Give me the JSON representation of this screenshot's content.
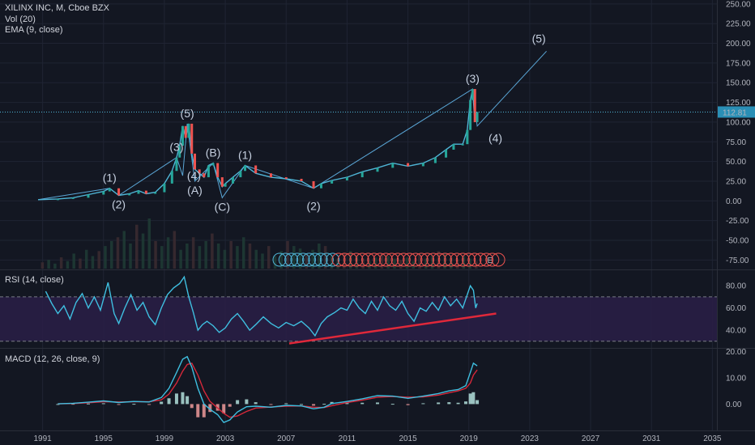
{
  "header": {
    "symbol": "XILINX INC, M, Cboe BZX",
    "vol": "Vol (20)",
    "ema": "EMA (9, close)",
    "rsi": "RSI (14, close)",
    "macd": "MACD (12, 26, close, 9)"
  },
  "colors": {
    "background": "#131722",
    "grid": "#1f2433",
    "price_line": "#4fb5d6",
    "candle_up": "#26a69a",
    "candle_down": "#ef5350",
    "wave_line": "#5aa6d6",
    "wave_label": "#c6d0e0",
    "rsi_line": "#3fbfe0",
    "rsi_band": "#2a1f47",
    "trend_line": "#e0283a",
    "macd_line": "#3fbfe0",
    "signal_line": "#d6283a",
    "last_price_bg": "#2a8fb6"
  },
  "chart_data": [
    {
      "type": "line",
      "title": "XILINX INC, M, Cboe BZX",
      "last_price_label": "112.81",
      "last_price": 112.81,
      "y_ticks": [
        "250.00",
        "225.00",
        "200.00",
        "175.00",
        "150.00",
        "125.00",
        "100.00",
        "75.00",
        "50.00",
        "25.00",
        "0.00",
        "-25.00",
        "-50.00",
        "-75.00"
      ],
      "ylim": [
        -87,
        255
      ],
      "x_ticks": [
        "1991",
        "1995",
        "1999",
        "2003",
        "2007",
        "2011",
        "2015",
        "2019",
        "2023",
        "2027",
        "2031",
        "2035"
      ],
      "xlim": [
        1988.2,
        2035.3
      ],
      "series": [
        {
          "values": [
            [
              1990.7,
              1.5
            ],
            [
              1992.0,
              2.5
            ],
            [
              1993.0,
              4
            ],
            [
              1994.0,
              8
            ],
            [
              1995.0,
              12
            ],
            [
              1995.4,
              16
            ],
            [
              1996.0,
              7
            ],
            [
              1996.7,
              9
            ],
            [
              1997.3,
              13
            ],
            [
              1997.8,
              9
            ],
            [
              1998.4,
              11
            ],
            [
              1999.0,
              22
            ],
            [
              1999.5,
              38
            ],
            [
              1999.8,
              55
            ],
            [
              2000.0,
              70
            ],
            [
              2000.2,
              95
            ],
            [
              2000.4,
              80
            ],
            [
              2000.6,
              98
            ],
            [
              2000.8,
              60
            ],
            [
              2001.0,
              40
            ],
            [
              2001.3,
              35
            ],
            [
              2001.6,
              30
            ],
            [
              2001.9,
              45
            ],
            [
              2002.2,
              48
            ],
            [
              2002.5,
              30
            ],
            [
              2002.8,
              18
            ],
            [
              2003.0,
              22
            ],
            [
              2003.5,
              30
            ],
            [
              2004.0,
              38
            ],
            [
              2004.3,
              45
            ],
            [
              2005.0,
              35
            ],
            [
              2006.0,
              30
            ],
            [
              2007.0,
              28
            ],
            [
              2008.0,
              25
            ],
            [
              2008.8,
              16
            ],
            [
              2009.3,
              22
            ],
            [
              2010.0,
              26
            ],
            [
              2011.0,
              30
            ],
            [
              2012.0,
              37
            ],
            [
              2013.0,
              42
            ],
            [
              2014.0,
              48
            ],
            [
              2015.0,
              44
            ],
            [
              2016.0,
              48
            ],
            [
              2016.8,
              55
            ],
            [
              2017.5,
              65
            ],
            [
              2018.0,
              72
            ],
            [
              2018.6,
              72
            ],
            [
              2018.9,
              90
            ],
            [
              2019.1,
              128
            ],
            [
              2019.25,
              142
            ],
            [
              2019.4,
              100
            ],
            [
              2019.55,
              112.81
            ]
          ]
        }
      ],
      "volume": [
        5,
        7,
        4,
        9,
        6,
        12,
        8,
        15,
        10,
        14,
        18,
        22,
        25,
        30,
        20,
        35,
        28,
        40,
        22,
        18,
        25,
        30,
        15,
        20,
        25,
        18,
        22,
        28,
        20,
        15,
        22,
        18,
        25,
        20,
        15,
        12,
        18,
        10,
        14,
        22,
        18,
        16,
        12,
        15,
        20,
        18,
        10,
        8,
        12,
        14,
        10,
        8,
        6,
        9,
        12,
        10,
        8,
        7,
        9,
        6,
        11,
        8,
        10,
        14,
        12,
        9,
        7,
        10,
        8,
        6
      ],
      "waves": [
        {
          "label": "(1)",
          "x": 1995.4,
          "y": 16,
          "pos": "above"
        },
        {
          "label": "(2)",
          "x": 1996.0,
          "y": 7,
          "pos": "below"
        },
        {
          "label": "(3)",
          "x": 1999.8,
          "y": 55,
          "pos": "above"
        },
        {
          "label": "(4)",
          "x": 2000.2,
          "y": 32,
          "pos": "right"
        },
        {
          "label": "(5)",
          "x": 2000.5,
          "y": 98,
          "pos": "above"
        },
        {
          "label": "(A)",
          "x": 2001.0,
          "y": 25,
          "pos": "below"
        },
        {
          "label": "(B)",
          "x": 2002.2,
          "y": 48,
          "pos": "above"
        },
        {
          "label": "(C)",
          "x": 2002.8,
          "y": 4,
          "pos": "below"
        },
        {
          "label": "(1)",
          "x": 2004.3,
          "y": 45,
          "pos": "above"
        },
        {
          "label": "(2)",
          "x": 2008.8,
          "y": 5,
          "pos": "below"
        },
        {
          "label": "(3)",
          "x": 2019.25,
          "y": 142,
          "pos": "above"
        },
        {
          "label": "(4)",
          "x": 2020.0,
          "y": 80,
          "pos": "right"
        },
        {
          "label": "(5)",
          "x": 2023.6,
          "y": 193,
          "pos": "above"
        }
      ],
      "wave_path": [
        [
          1990.7,
          1.5
        ],
        [
          1995.4,
          16
        ],
        [
          1996.0,
          7
        ],
        [
          1999.8,
          55
        ],
        [
          2000.2,
          32
        ],
        [
          2000.5,
          98
        ],
        [
          2001.0,
          25
        ],
        [
          2002.2,
          48
        ],
        [
          2002.8,
          4
        ],
        [
          2004.3,
          45
        ],
        [
          2008.8,
          16
        ],
        [
          2019.25,
          142
        ],
        [
          2019.55,
          95
        ],
        [
          2024.1,
          190
        ]
      ],
      "earnings_marker": "E"
    },
    {
      "type": "line",
      "title": "RSI (14, close)",
      "y_ticks": [
        "80.00",
        "60.00",
        "40.00"
      ],
      "ylim": [
        24,
        94
      ],
      "band": [
        30,
        70
      ],
      "series": [
        {
          "values": [
            [
              1991.2,
              75
            ],
            [
              1991.6,
              64
            ],
            [
              1992.0,
              55
            ],
            [
              1992.4,
              62
            ],
            [
              1992.8,
              50
            ],
            [
              1993.2,
              65
            ],
            [
              1993.6,
              73
            ],
            [
              1994.0,
              60
            ],
            [
              1994.4,
              70
            ],
            [
              1994.8,
              58
            ],
            [
              1995.3,
              83
            ],
            [
              1995.7,
              55
            ],
            [
              1996.0,
              46
            ],
            [
              1996.4,
              60
            ],
            [
              1996.8,
              72
            ],
            [
              1997.2,
              58
            ],
            [
              1997.6,
              65
            ],
            [
              1998.0,
              52
            ],
            [
              1998.4,
              45
            ],
            [
              1998.8,
              60
            ],
            [
              1999.2,
              72
            ],
            [
              1999.6,
              78
            ],
            [
              2000.0,
              82
            ],
            [
              2000.3,
              88
            ],
            [
              2000.6,
              70
            ],
            [
              2000.9,
              56
            ],
            [
              2001.2,
              40
            ],
            [
              2001.5,
              45
            ],
            [
              2001.8,
              48
            ],
            [
              2002.2,
              44
            ],
            [
              2002.6,
              38
            ],
            [
              2003.0,
              42
            ],
            [
              2003.4,
              50
            ],
            [
              2003.8,
              55
            ],
            [
              2004.2,
              48
            ],
            [
              2004.6,
              40
            ],
            [
              2005.0,
              45
            ],
            [
              2005.5,
              52
            ],
            [
              2006.0,
              46
            ],
            [
              2006.5,
              42
            ],
            [
              2007.0,
              47
            ],
            [
              2007.5,
              44
            ],
            [
              2008.0,
              48
            ],
            [
              2008.5,
              42
            ],
            [
              2008.9,
              35
            ],
            [
              2009.3,
              46
            ],
            [
              2009.7,
              52
            ],
            [
              2010.2,
              56
            ],
            [
              2010.6,
              60
            ],
            [
              2011.0,
              58
            ],
            [
              2011.4,
              68
            ],
            [
              2011.8,
              60
            ],
            [
              2012.2,
              55
            ],
            [
              2012.6,
              66
            ],
            [
              2013.0,
              58
            ],
            [
              2013.4,
              70
            ],
            [
              2013.8,
              62
            ],
            [
              2014.2,
              58
            ],
            [
              2014.6,
              66
            ],
            [
              2015.0,
              55
            ],
            [
              2015.4,
              48
            ],
            [
              2015.8,
              60
            ],
            [
              2016.2,
              57
            ],
            [
              2016.6,
              65
            ],
            [
              2017.0,
              58
            ],
            [
              2017.4,
              70
            ],
            [
              2017.8,
              62
            ],
            [
              2018.2,
              68
            ],
            [
              2018.6,
              60
            ],
            [
              2018.9,
              72
            ],
            [
              2019.1,
              80
            ],
            [
              2019.3,
              76
            ],
            [
              2019.45,
              60
            ],
            [
              2019.55,
              64
            ]
          ]
        }
      ],
      "trend_line": [
        [
          2007.2,
          28
        ],
        [
          2020.8,
          55
        ]
      ]
    },
    {
      "type": "line",
      "title": "MACD (12, 26, close, 9)",
      "y_ticks": [
        "20.00",
        "10.00",
        "0.00"
      ],
      "ylim": [
        -10,
        21
      ],
      "series": [
        {
          "name": "MACD",
          "values": [
            [
              1992.0,
              0.1
            ],
            [
              1993.0,
              0.3
            ],
            [
              1994.0,
              0.7
            ],
            [
              1995.0,
              1.2
            ],
            [
              1996.0,
              0.6
            ],
            [
              1997.0,
              1.0
            ],
            [
              1998.0,
              0.8
            ],
            [
              1998.8,
              2.5
            ],
            [
              1999.3,
              6
            ],
            [
              1999.8,
              12
            ],
            [
              2000.2,
              17
            ],
            [
              2000.5,
              18
            ],
            [
              2000.8,
              14
            ],
            [
              2001.2,
              6
            ],
            [
              2001.6,
              0
            ],
            [
              2002.0,
              -2
            ],
            [
              2002.5,
              -4
            ],
            [
              2002.9,
              -7
            ],
            [
              2003.3,
              -6
            ],
            [
              2003.8,
              -3
            ],
            [
              2004.4,
              -1
            ],
            [
              2005.0,
              -0.8
            ],
            [
              2006.0,
              -1.2
            ],
            [
              2007.0,
              -0.5
            ],
            [
              2008.0,
              -0.7
            ],
            [
              2008.8,
              -1.8
            ],
            [
              2009.5,
              -1.2
            ],
            [
              2010.0,
              0.2
            ],
            [
              2011.0,
              1.0
            ],
            [
              2012.0,
              2.0
            ],
            [
              2013.0,
              3.2
            ],
            [
              2014.0,
              3.0
            ],
            [
              2015.0,
              2.2
            ],
            [
              2016.0,
              3.0
            ],
            [
              2017.0,
              4.0
            ],
            [
              2017.7,
              5.0
            ],
            [
              2018.3,
              5.5
            ],
            [
              2018.8,
              7
            ],
            [
              2019.1,
              12
            ],
            [
              2019.3,
              15.5
            ],
            [
              2019.55,
              14.5
            ]
          ]
        },
        {
          "name": "Signal",
          "values": [
            [
              1992.0,
              0.1
            ],
            [
              1993.0,
              0.2
            ],
            [
              1994.0,
              0.5
            ],
            [
              1995.0,
              0.9
            ],
            [
              1996.0,
              0.8
            ],
            [
              1997.0,
              0.9
            ],
            [
              1998.0,
              0.9
            ],
            [
              1998.8,
              1.6
            ],
            [
              1999.3,
              3.8
            ],
            [
              1999.8,
              8
            ],
            [
              2000.2,
              12.5
            ],
            [
              2000.5,
              15
            ],
            [
              2000.8,
              15.5
            ],
            [
              2001.2,
              11
            ],
            [
              2001.6,
              5
            ],
            [
              2002.0,
              1
            ],
            [
              2002.5,
              -1.5
            ],
            [
              2002.9,
              -3.5
            ],
            [
              2003.3,
              -5
            ],
            [
              2003.8,
              -4.5
            ],
            [
              2004.4,
              -2.8
            ],
            [
              2005.0,
              -1.5
            ],
            [
              2006.0,
              -1.1
            ],
            [
              2007.0,
              -0.8
            ],
            [
              2008.0,
              -0.7
            ],
            [
              2008.8,
              -1.2
            ],
            [
              2009.5,
              -1.3
            ],
            [
              2010.0,
              -0.6
            ],
            [
              2011.0,
              0.6
            ],
            [
              2012.0,
              1.5
            ],
            [
              2013.0,
              2.6
            ],
            [
              2014.0,
              2.9
            ],
            [
              2015.0,
              2.6
            ],
            [
              2016.0,
              2.7
            ],
            [
              2017.0,
              3.4
            ],
            [
              2017.7,
              4.3
            ],
            [
              2018.3,
              5.0
            ],
            [
              2018.8,
              6.0
            ],
            [
              2019.1,
              8
            ],
            [
              2019.3,
              11
            ],
            [
              2019.55,
              13
            ]
          ]
        }
      ]
    }
  ]
}
